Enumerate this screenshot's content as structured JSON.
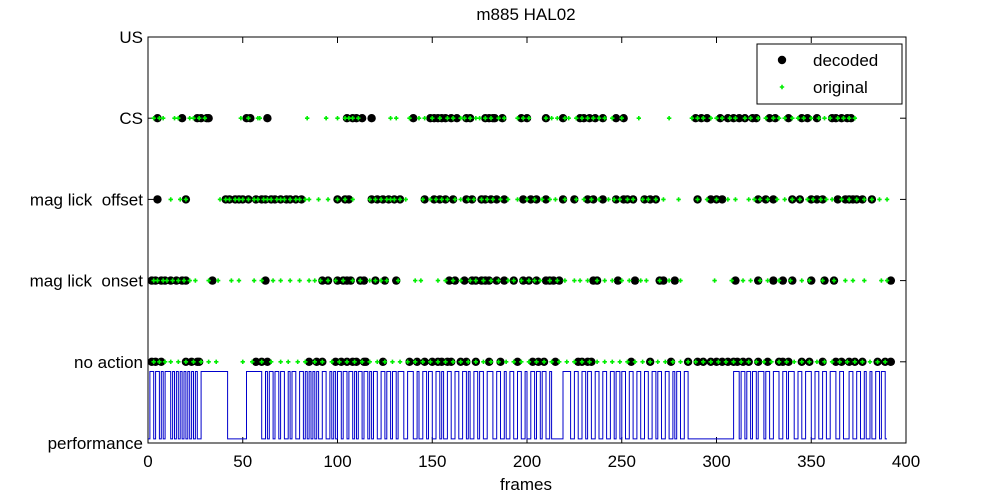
{
  "chart_data": {
    "type": "scatter",
    "title": "m885 HAL02",
    "xlabel": "frames",
    "ylabel": "",
    "xlim": [
      0,
      400
    ],
    "xticks": [
      "0",
      "50",
      "100",
      "150",
      "200",
      "250",
      "300",
      "350",
      "400"
    ],
    "categories": [
      "performance",
      "no action",
      "mag lick  onset",
      "mag lick  offset",
      "CS",
      "US"
    ],
    "legend": {
      "placement": "top-right",
      "entries": [
        {
          "name": "decoded",
          "marker": "dot",
          "color": "#000000"
        },
        {
          "name": "original",
          "marker": "plus",
          "color": "#00ee00"
        }
      ]
    },
    "series": [
      {
        "name": "decoded",
        "color": "#000000",
        "points": {
          "CS": [
            5,
            18,
            26,
            28,
            31,
            32,
            52,
            54,
            63,
            105,
            108,
            110,
            113,
            118,
            140,
            149,
            151,
            153,
            155,
            157,
            160,
            163,
            168,
            170,
            178,
            180,
            182,
            183,
            187,
            197,
            200,
            210,
            219,
            228,
            230,
            233,
            236,
            240,
            247,
            251,
            289,
            292,
            295,
            302,
            306,
            309,
            312,
            315,
            319,
            321,
            328,
            331,
            338,
            345,
            348,
            353,
            361,
            363,
            366,
            369,
            371
          ],
          "mag lick  offset": [
            5,
            20,
            41,
            43,
            46,
            48,
            50,
            53,
            57,
            60,
            62,
            65,
            67,
            70,
            73,
            75,
            78,
            81,
            100,
            104,
            106,
            118,
            121,
            124,
            127,
            130,
            133,
            146,
            151,
            154,
            157,
            161,
            168,
            171,
            176,
            178,
            181,
            184,
            188,
            198,
            202,
            205,
            210,
            219,
            225,
            232,
            235,
            240,
            247,
            251,
            253,
            256,
            262,
            265,
            268,
            290,
            297,
            300,
            303,
            322,
            326,
            330,
            340,
            344,
            350,
            353,
            356,
            364,
            368,
            370,
            372,
            374,
            377,
            382
          ],
          "mag lick  onset": [
            2,
            4,
            7,
            9,
            12,
            15,
            18,
            20,
            34,
            62,
            92,
            95,
            100,
            103,
            105,
            107,
            112,
            114,
            120,
            125,
            131,
            159,
            162,
            167,
            171,
            173,
            176,
            178,
            180,
            184,
            188,
            193,
            198,
            201,
            205,
            210,
            212,
            214,
            217,
            235,
            237,
            248,
            257,
            270,
            272,
            278,
            310,
            322,
            330,
            335,
            340,
            350,
            357,
            362,
            392
          ],
          "no action": [
            2,
            4,
            7,
            20,
            23,
            26,
            27,
            57,
            60,
            63,
            85,
            89,
            92,
            99,
            102,
            105,
            108,
            110,
            114,
            115,
            124,
            138,
            142,
            146,
            150,
            153,
            155,
            158,
            160,
            165,
            168,
            173,
            180,
            186,
            195,
            203,
            206,
            209,
            215,
            227,
            229,
            232,
            234,
            255,
            265,
            276,
            285,
            290,
            293,
            297,
            300,
            303,
            306,
            309,
            311,
            314,
            317,
            322,
            327,
            333,
            335,
            338,
            345,
            349,
            356,
            363,
            366,
            370,
            373,
            377,
            385,
            389,
            392
          ]
        }
      },
      {
        "name": "original",
        "color": "#00ee00",
        "points": {
          "CS": [
            3,
            6,
            8,
            14,
            16,
            22,
            24,
            27,
            30,
            49,
            53,
            58,
            59,
            84,
            94,
            100,
            104,
            106,
            108,
            111,
            128,
            131,
            138,
            143,
            146,
            150,
            154,
            158,
            161,
            165,
            167,
            170,
            173,
            175,
            178,
            181,
            185,
            188,
            195,
            198,
            201,
            210,
            213,
            216,
            220,
            222,
            226,
            229,
            232,
            235,
            238,
            241,
            245,
            250,
            259,
            275,
            287,
            290,
            293,
            297,
            300,
            303,
            307,
            310,
            315,
            318,
            322,
            326,
            330,
            333,
            336,
            340,
            343,
            346,
            350,
            354,
            357,
            360,
            364,
            367,
            370,
            373
          ],
          "mag lick  offset": [
            12,
            17,
            20,
            38,
            41,
            43,
            46,
            48,
            50,
            53,
            56,
            58,
            61,
            63,
            65,
            68,
            70,
            72,
            75,
            78,
            80,
            83,
            85,
            90,
            95,
            100,
            104,
            108,
            117,
            120,
            123,
            126,
            128,
            130,
            133,
            136,
            145,
            149,
            152,
            155,
            158,
            162,
            165,
            169,
            172,
            176,
            179,
            182,
            186,
            190,
            195,
            200,
            204,
            208,
            212,
            215,
            220,
            226,
            230,
            234,
            238,
            243,
            246,
            249,
            253,
            256,
            261,
            264,
            268,
            272,
            280,
            290,
            295,
            300,
            306,
            310,
            317,
            320,
            323,
            327,
            332,
            336,
            340,
            344,
            348,
            351,
            355,
            358,
            361,
            366,
            370,
            374,
            378,
            382,
            386,
            390
          ],
          "mag lick  onset": [
            3,
            5,
            8,
            10,
            13,
            16,
            19,
            22,
            25,
            32,
            37,
            44,
            48,
            56,
            60,
            66,
            70,
            75,
            80,
            85,
            88,
            91,
            95,
            99,
            103,
            108,
            112,
            117,
            120,
            123,
            126,
            132,
            141,
            144,
            153,
            157,
            161,
            165,
            170,
            173,
            177,
            181,
            185,
            190,
            193,
            197,
            201,
            204,
            207,
            212,
            216,
            220,
            225,
            228,
            232,
            237,
            241,
            245,
            250,
            254,
            260,
            263,
            270,
            275,
            281,
            299,
            308,
            314,
            318,
            323,
            327,
            333,
            339,
            345,
            349,
            356,
            362,
            368,
            372,
            378,
            387,
            390
          ],
          "no action": [
            3,
            6,
            9,
            12,
            16,
            20,
            24,
            28,
            32,
            36,
            50,
            55,
            60,
            65,
            70,
            74,
            79,
            83,
            88,
            92,
            97,
            101,
            105,
            109,
            113,
            117,
            121,
            125,
            129,
            133,
            137,
            141,
            145,
            149,
            153,
            157,
            161,
            165,
            169,
            173,
            177,
            181,
            185,
            189,
            193,
            197,
            201,
            205,
            209,
            213,
            217,
            221,
            225,
            229,
            233,
            237,
            241,
            245,
            249,
            253,
            257,
            261,
            265,
            269,
            273,
            277,
            281,
            285,
            289,
            293,
            297,
            301,
            305,
            309,
            313,
            317,
            321,
            325,
            329,
            333,
            337,
            341,
            345,
            349,
            353,
            357,
            361,
            365,
            369,
            373,
            377,
            381,
            385,
            389
          ]
        }
      }
    ],
    "performance_line": {
      "name": "performance",
      "color": "#0000cc",
      "high_level": 0.88,
      "low_level": 0.05,
      "high_intervals": [
        [
          1,
          3
        ],
        [
          4,
          6
        ],
        [
          7,
          8
        ],
        [
          9,
          12
        ],
        [
          13,
          14
        ],
        [
          15,
          16
        ],
        [
          17,
          18
        ],
        [
          19,
          20
        ],
        [
          21,
          22
        ],
        [
          23,
          24
        ],
        [
          25,
          26
        ],
        [
          28,
          42
        ],
        [
          52,
          60
        ],
        [
          62,
          63
        ],
        [
          64,
          66
        ],
        [
          67,
          69
        ],
        [
          70,
          72
        ],
        [
          74,
          75
        ],
        [
          76,
          78
        ],
        [
          80,
          82
        ],
        [
          83,
          84
        ],
        [
          85,
          86
        ],
        [
          87,
          88
        ],
        [
          89,
          90
        ],
        [
          92,
          94
        ],
        [
          96,
          97
        ],
        [
          98,
          99
        ],
        [
          100,
          102
        ],
        [
          103,
          105
        ],
        [
          106,
          108
        ],
        [
          109,
          110
        ],
        [
          111,
          113
        ],
        [
          114,
          116
        ],
        [
          117,
          118
        ],
        [
          119,
          121
        ],
        [
          123,
          125
        ],
        [
          126,
          128
        ],
        [
          129,
          131
        ],
        [
          132,
          135
        ],
        [
          137,
          140
        ],
        [
          142,
          143
        ],
        [
          145,
          147
        ],
        [
          148,
          150
        ],
        [
          152,
          154
        ],
        [
          155,
          156
        ],
        [
          158,
          160
        ],
        [
          162,
          164
        ],
        [
          166,
          168
        ],
        [
          169,
          170
        ],
        [
          172,
          174
        ],
        [
          175,
          177
        ],
        [
          179,
          182
        ],
        [
          184,
          186
        ],
        [
          188,
          189
        ],
        [
          191,
          193
        ],
        [
          195,
          197
        ],
        [
          199,
          200
        ],
        [
          202,
          204
        ],
        [
          205,
          207
        ],
        [
          208,
          210
        ],
        [
          212,
          213
        ],
        [
          219,
          223
        ],
        [
          225,
          227
        ],
        [
          229,
          231
        ],
        [
          232,
          234
        ],
        [
          236,
          238
        ],
        [
          240,
          242
        ],
        [
          244,
          246
        ],
        [
          247,
          249
        ],
        [
          250,
          252
        ],
        [
          254,
          256
        ],
        [
          258,
          260
        ],
        [
          262,
          264
        ],
        [
          266,
          268
        ],
        [
          269,
          271
        ],
        [
          273,
          275
        ],
        [
          277,
          278
        ],
        [
          279,
          281
        ],
        [
          283,
          285
        ],
        [
          309,
          312
        ],
        [
          313,
          315
        ],
        [
          316,
          318
        ],
        [
          319,
          321
        ],
        [
          322,
          325
        ],
        [
          326,
          328
        ],
        [
          330,
          333
        ],
        [
          335,
          337
        ],
        [
          338,
          341
        ],
        [
          343,
          345
        ],
        [
          347,
          350
        ],
        [
          352,
          354
        ],
        [
          356,
          358
        ],
        [
          360,
          363
        ],
        [
          365,
          367
        ],
        [
          370,
          372
        ],
        [
          374,
          376
        ],
        [
          378,
          379
        ],
        [
          381,
          382
        ],
        [
          384,
          386
        ],
        [
          387,
          389
        ]
      ]
    }
  }
}
